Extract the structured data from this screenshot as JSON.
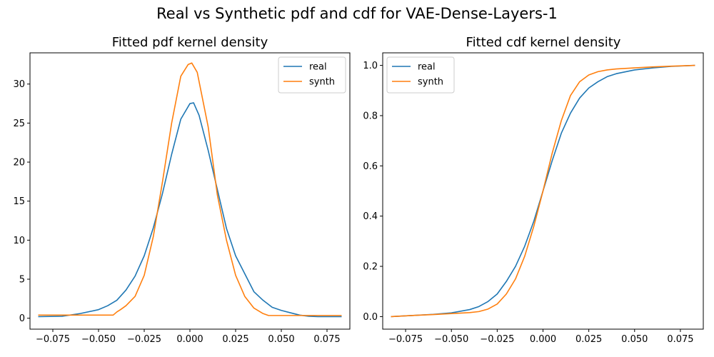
{
  "suptitle": "Real vs Synthetic pdf and cdf for VAE-Dense-Layers-1",
  "chart_data": [
    {
      "type": "line",
      "title": "Fitted pdf kernel density",
      "xlabel": "",
      "ylabel": "",
      "xlim": [
        -0.0875,
        0.0875
      ],
      "ylim": [
        -1.4,
        34.0
      ],
      "xticks": [
        -0.075,
        -0.05,
        -0.025,
        0.0,
        0.025,
        0.05,
        0.075
      ],
      "xtick_labels": [
        "−0.075",
        "−0.050",
        "−0.025",
        "0.000",
        "0.025",
        "0.050",
        "0.075"
      ],
      "yticks": [
        0,
        5,
        10,
        15,
        20,
        25,
        30
      ],
      "ytick_labels": [
        "0",
        "5",
        "10",
        "15",
        "20",
        "25",
        "30"
      ],
      "legend_position": "top-right",
      "series": [
        {
          "name": "real",
          "color": "#1f77b4",
          "x": [
            -0.083,
            -0.07,
            -0.06,
            -0.05,
            -0.045,
            -0.04,
            -0.035,
            -0.03,
            -0.025,
            -0.02,
            -0.015,
            -0.01,
            -0.005,
            0.0,
            0.002,
            0.005,
            0.01,
            0.015,
            0.02,
            0.025,
            0.03,
            0.035,
            0.04,
            0.045,
            0.05,
            0.055,
            0.06,
            0.065,
            0.07,
            0.083
          ],
          "y": [
            0.2,
            0.25,
            0.6,
            1.1,
            1.6,
            2.3,
            3.6,
            5.4,
            8.0,
            11.6,
            16.0,
            21.0,
            25.5,
            27.5,
            27.6,
            26.0,
            21.5,
            16.5,
            11.5,
            8.0,
            5.7,
            3.4,
            2.3,
            1.4,
            1.0,
            0.7,
            0.4,
            0.25,
            0.2,
            0.2
          ]
        },
        {
          "name": "synth",
          "color": "#ff7f0e",
          "x": [
            -0.083,
            -0.065,
            -0.05,
            -0.042,
            -0.04,
            -0.038,
            -0.035,
            -0.03,
            -0.025,
            -0.02,
            -0.015,
            -0.01,
            -0.005,
            -0.001,
            0.001,
            0.004,
            0.007,
            0.01,
            0.015,
            0.02,
            0.025,
            0.03,
            0.035,
            0.04,
            0.043,
            0.05,
            0.065,
            0.083
          ],
          "y": [
            0.4,
            0.4,
            0.4,
            0.4,
            0.8,
            1.1,
            1.6,
            2.8,
            5.5,
            10.5,
            17.5,
            25.0,
            31.0,
            32.5,
            32.7,
            31.5,
            28.0,
            24.5,
            15.8,
            10.0,
            5.5,
            2.8,
            1.3,
            0.6,
            0.35,
            0.35,
            0.35,
            0.35
          ]
        }
      ]
    },
    {
      "type": "line",
      "title": "Fitted cdf kernel density",
      "xlabel": "",
      "ylabel": "",
      "xlim": [
        -0.0875,
        0.0875
      ],
      "ylim": [
        -0.05,
        1.05
      ],
      "xticks": [
        -0.075,
        -0.05,
        -0.025,
        0.0,
        0.025,
        0.05,
        0.075
      ],
      "xtick_labels": [
        "−0.075",
        "−0.050",
        "−0.025",
        "0.000",
        "0.025",
        "0.050",
        "0.075"
      ],
      "yticks": [
        0.0,
        0.2,
        0.4,
        0.6,
        0.8,
        1.0
      ],
      "ytick_labels": [
        "0.0",
        "0.2",
        "0.4",
        "0.6",
        "0.8",
        "1.0"
      ],
      "legend_position": "top-left",
      "series": [
        {
          "name": "real",
          "color": "#1f77b4",
          "x": [
            -0.083,
            -0.07,
            -0.06,
            -0.05,
            -0.04,
            -0.035,
            -0.03,
            -0.025,
            -0.02,
            -0.015,
            -0.01,
            -0.005,
            0.0,
            0.005,
            0.01,
            0.015,
            0.02,
            0.025,
            0.03,
            0.035,
            0.04,
            0.05,
            0.06,
            0.07,
            0.083
          ],
          "y": [
            0.0,
            0.005,
            0.009,
            0.015,
            0.028,
            0.04,
            0.06,
            0.09,
            0.14,
            0.2,
            0.28,
            0.38,
            0.5,
            0.62,
            0.73,
            0.81,
            0.87,
            0.91,
            0.935,
            0.955,
            0.967,
            0.982,
            0.99,
            0.996,
            1.0
          ]
        },
        {
          "name": "synth",
          "color": "#ff7f0e",
          "x": [
            -0.083,
            -0.07,
            -0.06,
            -0.05,
            -0.04,
            -0.035,
            -0.03,
            -0.025,
            -0.02,
            -0.015,
            -0.01,
            -0.005,
            0.0,
            0.005,
            0.01,
            0.015,
            0.02,
            0.025,
            0.03,
            0.035,
            0.04,
            0.05,
            0.06,
            0.07,
            0.083
          ],
          "y": [
            0.0,
            0.005,
            0.008,
            0.012,
            0.016,
            0.02,
            0.03,
            0.05,
            0.09,
            0.15,
            0.24,
            0.36,
            0.5,
            0.65,
            0.78,
            0.88,
            0.935,
            0.962,
            0.975,
            0.982,
            0.986,
            0.99,
            0.994,
            0.997,
            1.0
          ]
        }
      ]
    }
  ]
}
